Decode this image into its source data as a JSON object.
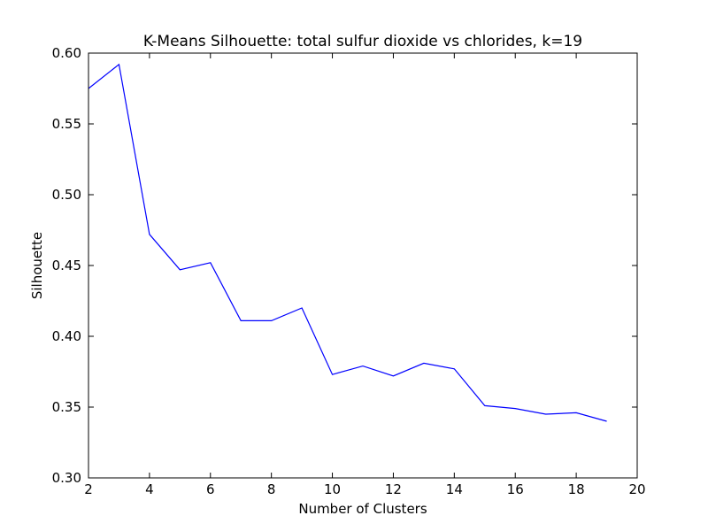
{
  "chart_data": {
    "type": "line",
    "title": "K-Means Silhouette: total sulfur dioxide vs chlorides, k=19",
    "xlabel": "Number of Clusters",
    "ylabel": "Silhouette",
    "xlim": [
      2,
      20
    ],
    "ylim": [
      0.3,
      0.6
    ],
    "xticks": [
      2,
      4,
      6,
      8,
      10,
      12,
      14,
      16,
      18,
      20
    ],
    "xtick_labels": [
      "2",
      "4",
      "6",
      "8",
      "10",
      "12",
      "14",
      "16",
      "18",
      "20"
    ],
    "yticks": [
      0.3,
      0.35,
      0.4,
      0.45,
      0.5,
      0.55,
      0.6
    ],
    "ytick_labels": [
      "0.30",
      "0.35",
      "0.40",
      "0.45",
      "0.50",
      "0.55",
      "0.60"
    ],
    "grid": false,
    "legend": "none",
    "series": [
      {
        "color": "#0000ff",
        "x": [
          2,
          3,
          4,
          5,
          6,
          7,
          8,
          9,
          10,
          11,
          12,
          13,
          14,
          15,
          16,
          17,
          18,
          19
        ],
        "y": [
          0.575,
          0.592,
          0.472,
          0.447,
          0.452,
          0.411,
          0.411,
          0.42,
          0.373,
          0.379,
          0.372,
          0.381,
          0.377,
          0.351,
          0.349,
          0.345,
          0.346,
          0.34
        ]
      }
    ]
  }
}
